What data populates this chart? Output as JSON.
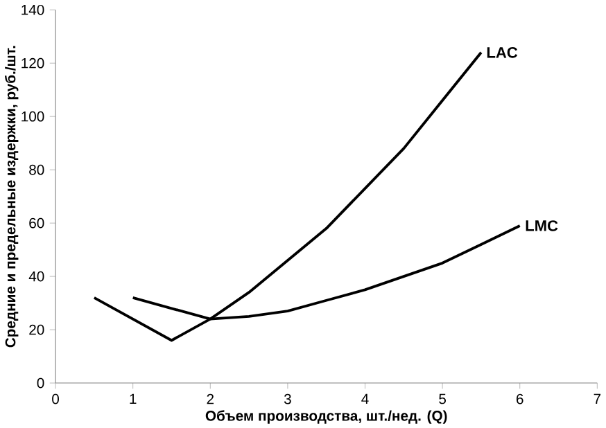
{
  "chart_data": {
    "type": "line",
    "xlabel": "Объем производства, шт./нед. (Q)",
    "ylabel": "Средние и предельные издержки, руб./шт.",
    "xlim": [
      0,
      7
    ],
    "xticks": [
      0,
      1,
      2,
      3,
      4,
      5,
      6,
      7
    ],
    "ylim": [
      0,
      140
    ],
    "yticks": [
      0,
      20,
      40,
      60,
      80,
      100,
      120,
      140
    ],
    "grid": false,
    "legend": false,
    "marker": "none",
    "line_style": "solid",
    "series": [
      {
        "name": "LAC",
        "color": "#000000",
        "x": [
          0.5,
          1.5,
          2,
          2.5,
          3,
          3.5,
          4,
          4.5,
          5,
          5.5
        ],
        "values": [
          32,
          16,
          24,
          34,
          46,
          58,
          73,
          88,
          106,
          124
        ]
      },
      {
        "name": "LMC",
        "color": "#000000",
        "x": [
          1,
          2,
          2.5,
          3,
          3.5,
          4,
          4.5,
          5,
          5.5,
          6
        ],
        "values": [
          32,
          24,
          25,
          27,
          31,
          35,
          40,
          45,
          52,
          59
        ]
      }
    ]
  }
}
